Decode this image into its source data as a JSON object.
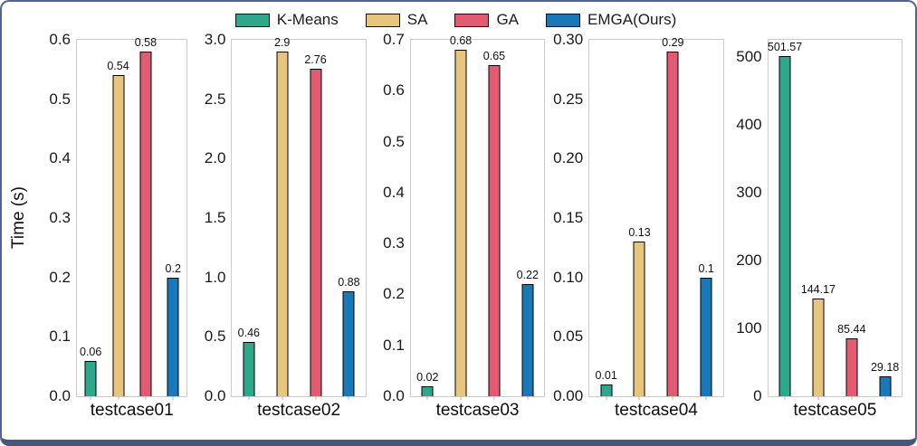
{
  "frame": {
    "border_color": "#54638c",
    "border_bottom_color": "#47567d",
    "background": "#ffffff",
    "spine_color": "#cccccc"
  },
  "chart_data": {
    "type": "bar",
    "ylabel": "Time (s)",
    "grid": false,
    "legend": {
      "position": "top-center",
      "entries": [
        "K-Means",
        "SA",
        "GA",
        "EMGA(Ours)"
      ]
    },
    "series_colors": {
      "K-Means": "#2ea78a",
      "SA": "#e7c57e",
      "GA": "#e15b73",
      "EMGA(Ours)": "#1b78b7"
    },
    "bar_edge_color": "#000000",
    "subplots": [
      {
        "category": "testcase01",
        "values": [
          0.06,
          0.54,
          0.58,
          0.2
        ],
        "value_labels": [
          "0.06",
          "0.54",
          "0.58",
          "0.2"
        ],
        "yticks": [
          0,
          0.1,
          0.2,
          0.3,
          0.4,
          0.5,
          0.6
        ],
        "ytick_labels": [
          "0.0",
          "0.1",
          "0.2",
          "0.3",
          "0.4",
          "0.5",
          "0.6"
        ],
        "ylim": [
          0,
          0.6
        ]
      },
      {
        "category": "testcase02",
        "values": [
          0.46,
          2.9,
          2.76,
          0.88
        ],
        "value_labels": [
          "0.46",
          "2.9",
          "2.76",
          "0.88"
        ],
        "yticks": [
          0,
          0.5,
          1.0,
          1.5,
          2.0,
          2.5,
          3.0
        ],
        "ytick_labels": [
          "0.0",
          "0.5",
          "1.0",
          "1.5",
          "2.0",
          "2.5",
          "3.0"
        ],
        "ylim": [
          0,
          3.0
        ]
      },
      {
        "category": "testcase03",
        "values": [
          0.02,
          0.68,
          0.65,
          0.22
        ],
        "value_labels": [
          "0.02",
          "0.68",
          "0.65",
          "0.22"
        ],
        "yticks": [
          0,
          0.1,
          0.2,
          0.3,
          0.4,
          0.5,
          0.6,
          0.7
        ],
        "ytick_labels": [
          "0.0",
          "0.1",
          "0.2",
          "0.3",
          "0.4",
          "0.5",
          "0.6",
          "0.7"
        ],
        "ylim": [
          0,
          0.7
        ]
      },
      {
        "category": "testcase04",
        "values": [
          0.01,
          0.13,
          0.29,
          0.1
        ],
        "value_labels": [
          "0.01",
          "0.13",
          "0.29",
          "0.1"
        ],
        "yticks": [
          0,
          0.05,
          0.1,
          0.15,
          0.2,
          0.25,
          0.3
        ],
        "ytick_labels": [
          "0.00",
          "0.05",
          "0.10",
          "0.15",
          "0.20",
          "0.25",
          "0.30"
        ],
        "ylim": [
          0,
          0.3
        ]
      },
      {
        "category": "testcase05",
        "values": [
          501.57,
          144.17,
          85.44,
          29.18
        ],
        "value_labels": [
          "501.57",
          "144.17",
          "85.44",
          "29.18"
        ],
        "yticks": [
          0,
          100,
          200,
          300,
          400,
          500
        ],
        "ytick_labels": [
          "0",
          "100",
          "200",
          "300",
          "400",
          "500"
        ],
        "ylim": [
          0,
          525
        ]
      }
    ]
  }
}
